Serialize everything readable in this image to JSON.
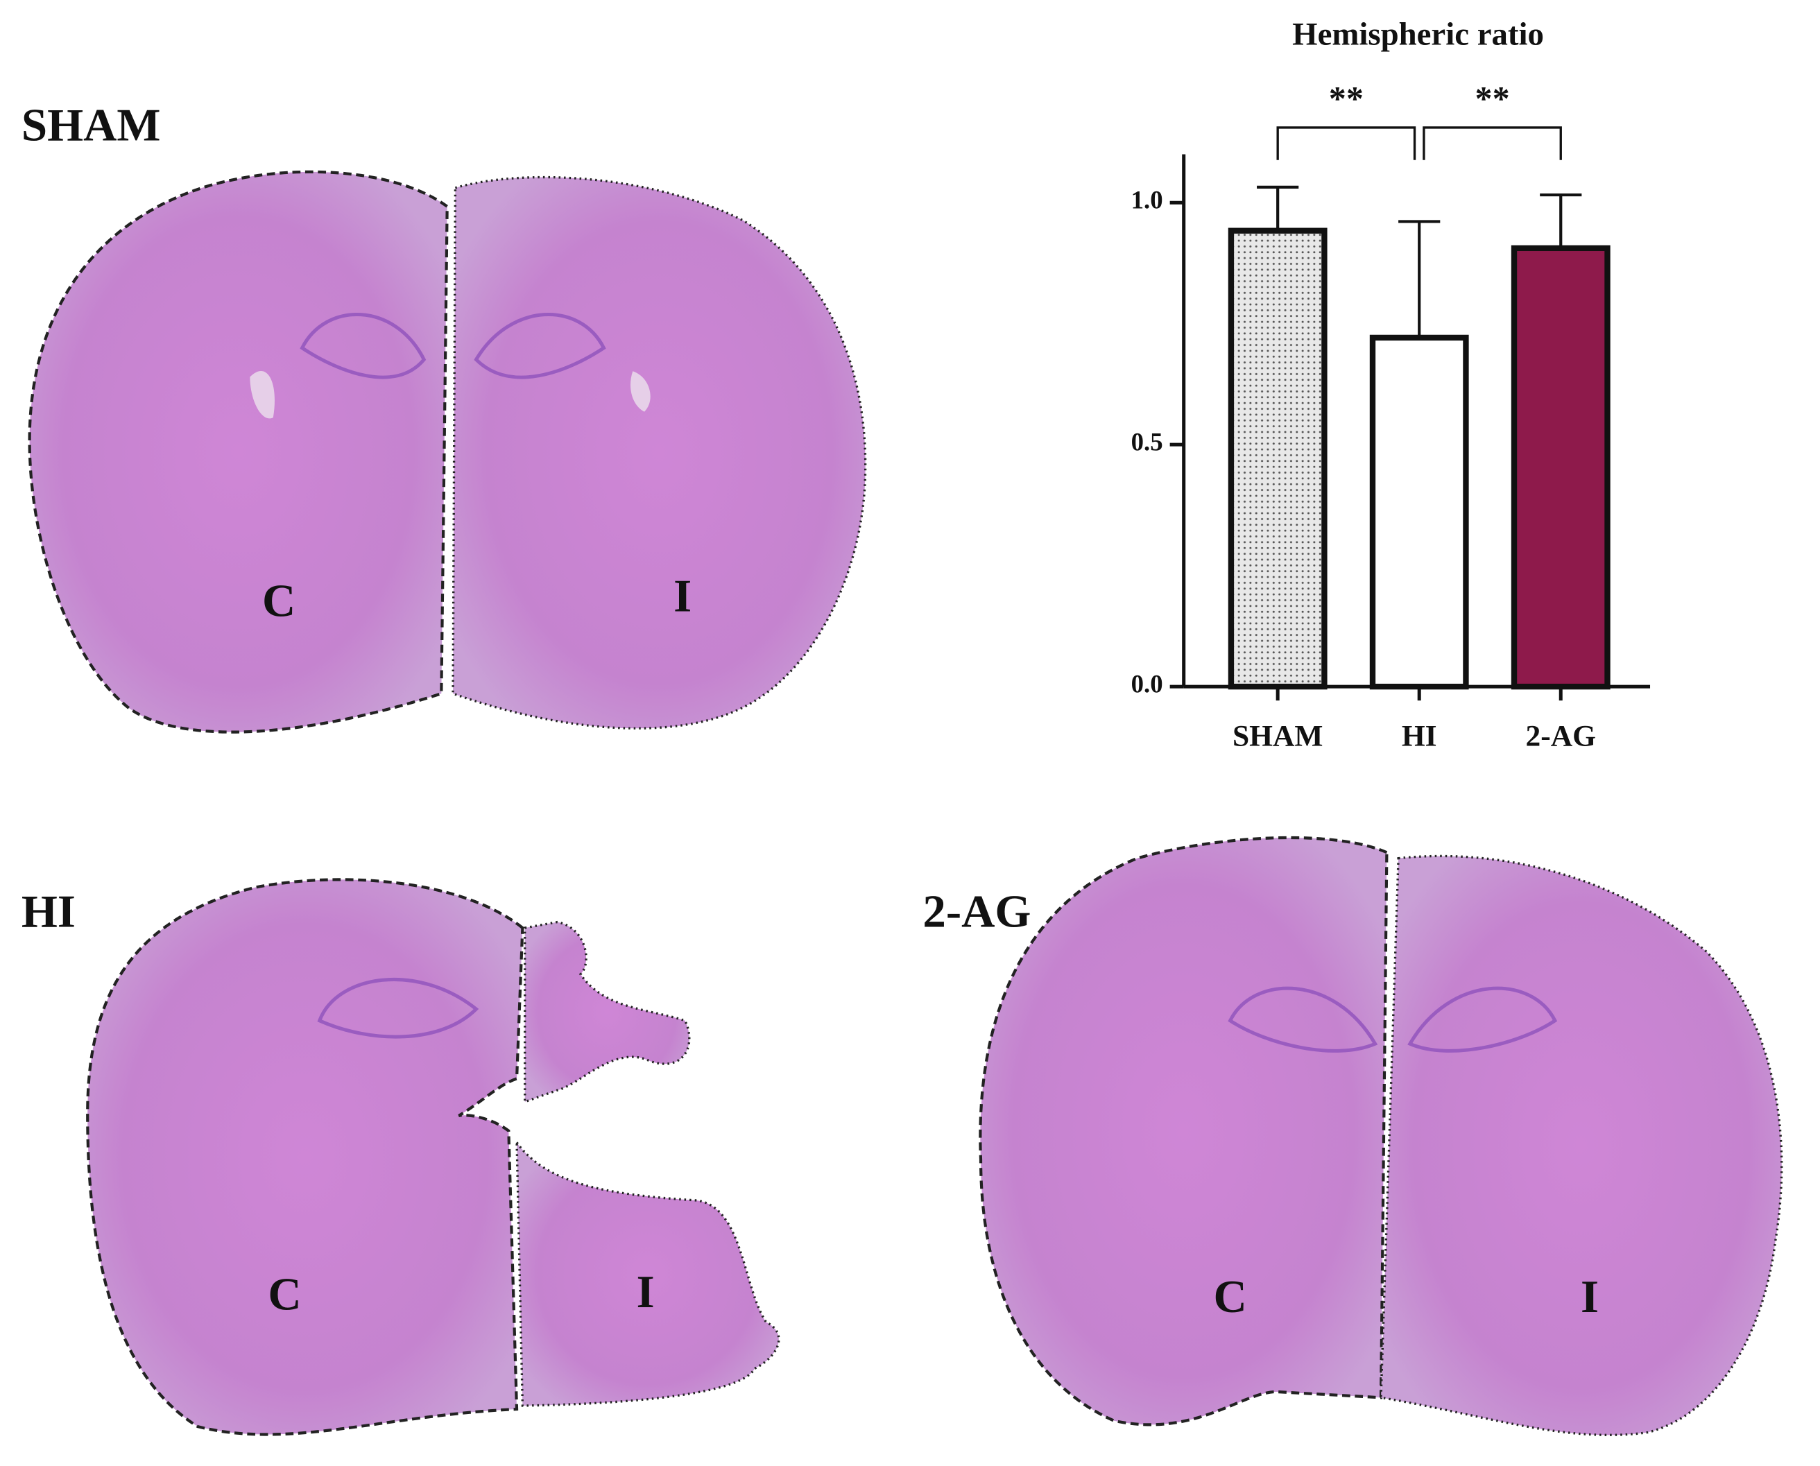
{
  "chart_data": {
    "type": "bar",
    "title": "Hemispheric ratio",
    "categories": [
      "SHAM",
      "HI",
      "2-AG"
    ],
    "values": [
      0.942,
      0.721,
      0.906
    ],
    "errors": [
      0.09,
      0.24,
      0.11
    ],
    "colors": [
      "#e6e6e6",
      "#ffffff",
      "#8e1a4b"
    ],
    "patterns": [
      "dots",
      null,
      null
    ],
    "ylim": [
      0,
      1.1
    ],
    "yticks": [
      {
        "value": 0,
        "label": "0.0"
      },
      0.5,
      {
        "value": 1,
        "label": "1.0"
      }
    ],
    "annotations": [
      {
        "text": "**",
        "from": 0,
        "to": 1
      },
      {
        "text": "**",
        "from": 1,
        "to": 2
      }
    ]
  },
  "panels": [
    {
      "label": "SHAM",
      "contralateral": "C",
      "ipsilateral": "I"
    },
    {
      "label": "HI",
      "contralateral": "C",
      "ipsilateral": "I"
    },
    {
      "label": "2-AG",
      "contralateral": "C",
      "ipsilateral": "I"
    }
  ]
}
